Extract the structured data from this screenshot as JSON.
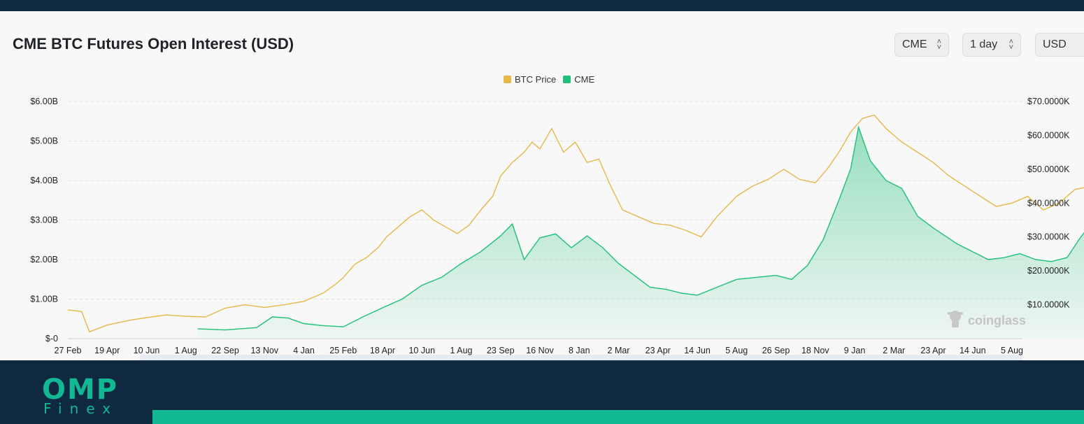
{
  "header": {
    "title": "CME BTC Futures Open Interest (USD)",
    "selectors": {
      "exchange": "CME",
      "interval": "1 day",
      "currency": "USD"
    }
  },
  "brand": {
    "logo_main": "OMP",
    "logo_sub": "Finex",
    "watermark": "coinglass",
    "accent": "#12b794",
    "dark_band": "#0f2a40"
  },
  "chart_data": {
    "type": "line",
    "title": "CME BTC Futures Open Interest (USD)",
    "legend": [
      {
        "name": "BTC Price",
        "color": "#e6b84a"
      },
      {
        "name": "CME",
        "color": "#1fbf7a"
      }
    ],
    "legend_position": "top-center",
    "grid": true,
    "left_axis": {
      "label": "Open Interest (USD)",
      "ticks": [
        "$-0",
        "$1.00B",
        "$2.00B",
        "$3.00B",
        "$4.00B",
        "$5.00B",
        "$6.00B"
      ],
      "ylim": [
        0,
        6
      ]
    },
    "right_axis": {
      "label": "BTC Price",
      "ticks": [
        "$10.0000K",
        "$20.0000K",
        "$30.0000K",
        "$40.0000K",
        "$50.0000K",
        "$60.0000K",
        "$70.0000K"
      ],
      "ylim": [
        0,
        70
      ]
    },
    "x_ticks": [
      "27 Feb",
      "19 Apr",
      "10 Jun",
      "1 Aug",
      "22 Sep",
      "13 Nov",
      "4 Jan",
      "25 Feb",
      "18 Apr",
      "10 Jun",
      "1 Aug",
      "23 Sep",
      "16 Nov",
      "8 Jan",
      "2 Mar",
      "23 Apr",
      "14 Jun",
      "5 Aug",
      "26 Sep",
      "18 Nov",
      "9 Jan",
      "2 Mar",
      "23 Apr",
      "14 Jun",
      "5 Aug"
    ],
    "series": [
      {
        "name": "BTC Price",
        "unit": "thousand USD",
        "points": [
          [
            0,
            8.5
          ],
          [
            0.35,
            8.0
          ],
          [
            0.55,
            2.0
          ],
          [
            1.0,
            4.0
          ],
          [
            1.6,
            5.5
          ],
          [
            2.0,
            6.2
          ],
          [
            2.5,
            7.0
          ],
          [
            3.0,
            6.6
          ],
          [
            3.5,
            6.4
          ],
          [
            4.0,
            9.0
          ],
          [
            4.5,
            10.0
          ],
          [
            5.0,
            9.2
          ],
          [
            5.5,
            10.0
          ],
          [
            6.0,
            11.0
          ],
          [
            6.5,
            13.5
          ],
          [
            6.8,
            16.0
          ],
          [
            7.0,
            18.0
          ],
          [
            7.3,
            22.0
          ],
          [
            7.6,
            24.0
          ],
          [
            7.9,
            27.0
          ],
          [
            8.1,
            30.0
          ],
          [
            8.4,
            33.0
          ],
          [
            8.7,
            36.0
          ],
          [
            9.0,
            38.0
          ],
          [
            9.3,
            35.0
          ],
          [
            9.6,
            33.0
          ],
          [
            9.9,
            31.0
          ],
          [
            10.2,
            33.5
          ],
          [
            10.5,
            38.0
          ],
          [
            10.8,
            42.0
          ],
          [
            11.0,
            48.0
          ],
          [
            11.3,
            52.0
          ],
          [
            11.6,
            55.0
          ],
          [
            11.8,
            58.0
          ],
          [
            12.0,
            56.0
          ],
          [
            12.3,
            62.0
          ],
          [
            12.6,
            55.0
          ],
          [
            12.9,
            58.0
          ],
          [
            13.2,
            52.0
          ],
          [
            13.5,
            53.0
          ],
          [
            13.8,
            45.0
          ],
          [
            14.1,
            38.0
          ],
          [
            14.5,
            36.0
          ],
          [
            14.9,
            34.0
          ],
          [
            15.3,
            33.5
          ],
          [
            15.7,
            32.0
          ],
          [
            16.1,
            30.0
          ],
          [
            16.5,
            36.0
          ],
          [
            17.0,
            42.0
          ],
          [
            17.4,
            45.0
          ],
          [
            17.8,
            47.0
          ],
          [
            18.2,
            50.0
          ],
          [
            18.6,
            47.0
          ],
          [
            19.0,
            46.0
          ],
          [
            19.3,
            50.0
          ],
          [
            19.6,
            55.0
          ],
          [
            19.9,
            61.0
          ],
          [
            20.2,
            65.0
          ],
          [
            20.5,
            66.0
          ],
          [
            20.8,
            62.0
          ],
          [
            21.2,
            58.0
          ],
          [
            21.6,
            55.0
          ],
          [
            22.0,
            52.0
          ],
          [
            22.4,
            48.0
          ],
          [
            22.8,
            45.0
          ],
          [
            23.2,
            42.0
          ],
          [
            23.6,
            39.0
          ],
          [
            24.0,
            40.0
          ],
          [
            24.4,
            42.0
          ],
          [
            24.8,
            38.0
          ],
          [
            25.2,
            40.0
          ],
          [
            25.6,
            44.0
          ],
          [
            26.0,
            45.0
          ],
          [
            26.4,
            41.0
          ],
          [
            26.8,
            40.0
          ],
          [
            27.1,
            35.0
          ],
          [
            27.4,
            31.0
          ],
          [
            27.7,
            30.0
          ],
          [
            28.0,
            30.0
          ],
          [
            28.3,
            25.0
          ],
          [
            28.6,
            22.0
          ],
          [
            28.9,
            20.5
          ],
          [
            29.3,
            20.0
          ],
          [
            29.7,
            22.0
          ],
          [
            30.1,
            22.0
          ],
          [
            30.5,
            21.5
          ],
          [
            30.9,
            20.0
          ],
          [
            31.3,
            19.5
          ],
          [
            31.7,
            19.0
          ],
          [
            32.1,
            19.5
          ],
          [
            32.5,
            19.0
          ],
          [
            32.9,
            19.5
          ],
          [
            33.3,
            18.5
          ],
          [
            33.7,
            17.5
          ],
          [
            34.1,
            17.0
          ],
          [
            34.5,
            17.0
          ],
          [
            34.9,
            17.0
          ],
          [
            35.3,
            18.0
          ],
          [
            35.7,
            21.0
          ],
          [
            36.1,
            23.0
          ],
          [
            36.5,
            23.5
          ],
          [
            36.9,
            23.0
          ],
          [
            37.3,
            24.5
          ],
          [
            37.7,
            26.5
          ],
          [
            38.1,
            28.0
          ],
          [
            38.5,
            29.0
          ],
          [
            38.9,
            30.0
          ],
          [
            39.3,
            29.0
          ],
          [
            39.7,
            28.5
          ],
          [
            40.1,
            28.0
          ],
          [
            40.5,
            28.0
          ],
          [
            40.9,
            29.0
          ],
          [
            41.3,
            30.0
          ],
          [
            41.7,
            30.5
          ],
          [
            42.1,
            29.5
          ],
          [
            42.5,
            29.0
          ],
          [
            42.9,
            29.5
          ],
          [
            43.2,
            27.0
          ],
          [
            43.35,
            28.0
          ]
        ]
      },
      {
        "name": "CME",
        "unit": "billion USD",
        "points": [
          [
            3.3,
            0.25
          ],
          [
            4.0,
            0.22
          ],
          [
            4.8,
            0.28
          ],
          [
            5.2,
            0.55
          ],
          [
            5.6,
            0.52
          ],
          [
            6.0,
            0.38
          ],
          [
            6.5,
            0.33
          ],
          [
            7.0,
            0.3
          ],
          [
            7.5,
            0.55
          ],
          [
            8.0,
            0.78
          ],
          [
            8.5,
            1.0
          ],
          [
            9.0,
            1.35
          ],
          [
            9.5,
            1.55
          ],
          [
            10.0,
            1.9
          ],
          [
            10.5,
            2.2
          ],
          [
            11.0,
            2.6
          ],
          [
            11.3,
            2.9
          ],
          [
            11.6,
            2.0
          ],
          [
            12.0,
            2.55
          ],
          [
            12.4,
            2.65
          ],
          [
            12.8,
            2.3
          ],
          [
            13.2,
            2.6
          ],
          [
            13.6,
            2.3
          ],
          [
            14.0,
            1.9
          ],
          [
            14.4,
            1.6
          ],
          [
            14.8,
            1.3
          ],
          [
            15.2,
            1.25
          ],
          [
            15.6,
            1.15
          ],
          [
            16.0,
            1.1
          ],
          [
            16.5,
            1.3
          ],
          [
            17.0,
            1.5
          ],
          [
            17.5,
            1.55
          ],
          [
            18.0,
            1.6
          ],
          [
            18.4,
            1.5
          ],
          [
            18.8,
            1.85
          ],
          [
            19.2,
            2.5
          ],
          [
            19.6,
            3.5
          ],
          [
            19.9,
            4.3
          ],
          [
            20.1,
            5.35
          ],
          [
            20.4,
            4.5
          ],
          [
            20.8,
            4.0
          ],
          [
            21.2,
            3.8
          ],
          [
            21.6,
            3.1
          ],
          [
            22.0,
            2.8
          ],
          [
            22.3,
            2.6
          ],
          [
            22.6,
            2.4
          ],
          [
            23.0,
            2.2
          ],
          [
            23.4,
            2.0
          ],
          [
            23.8,
            2.05
          ],
          [
            24.2,
            2.15
          ],
          [
            24.6,
            2.0
          ],
          [
            25.0,
            1.95
          ],
          [
            25.4,
            2.05
          ],
          [
            25.7,
            2.5
          ],
          [
            26.0,
            2.9
          ],
          [
            26.3,
            2.35
          ],
          [
            26.7,
            2.3
          ],
          [
            27.0,
            1.75
          ],
          [
            27.4,
            1.72
          ],
          [
            27.8,
            1.9
          ],
          [
            28.2,
            1.6
          ],
          [
            28.6,
            1.25
          ],
          [
            29.0,
            1.3
          ],
          [
            29.4,
            1.5
          ],
          [
            29.8,
            1.45
          ],
          [
            30.2,
            1.45
          ],
          [
            30.6,
            1.3
          ],
          [
            31.0,
            1.4
          ],
          [
            31.4,
            1.35
          ],
          [
            31.8,
            1.25
          ],
          [
            32.2,
            1.3
          ],
          [
            32.6,
            1.25
          ],
          [
            33.0,
            1.25
          ],
          [
            33.4,
            1.5
          ],
          [
            33.8,
            1.35
          ],
          [
            34.2,
            1.2
          ],
          [
            34.6,
            1.25
          ],
          [
            35.0,
            1.25
          ],
          [
            35.4,
            1.7
          ],
          [
            35.8,
            2.25
          ],
          [
            36.2,
            1.85
          ],
          [
            36.6,
            2.1
          ],
          [
            37.0,
            1.75
          ],
          [
            37.4,
            1.55
          ],
          [
            37.8,
            2.1
          ],
          [
            38.2,
            2.25
          ],
          [
            38.6,
            2.3
          ],
          [
            39.0,
            2.1
          ],
          [
            39.4,
            1.95
          ],
          [
            39.8,
            1.9
          ],
          [
            40.2,
            1.85
          ],
          [
            40.6,
            1.8
          ],
          [
            40.9,
            2.2
          ],
          [
            41.1,
            2.75
          ],
          [
            41.3,
            2.9
          ],
          [
            41.6,
            2.6
          ],
          [
            41.9,
            2.3
          ],
          [
            42.2,
            2.2
          ],
          [
            42.5,
            2.3
          ],
          [
            42.8,
            2.2
          ],
          [
            43.1,
            2.25
          ],
          [
            43.35,
            2.0
          ]
        ]
      }
    ]
  }
}
